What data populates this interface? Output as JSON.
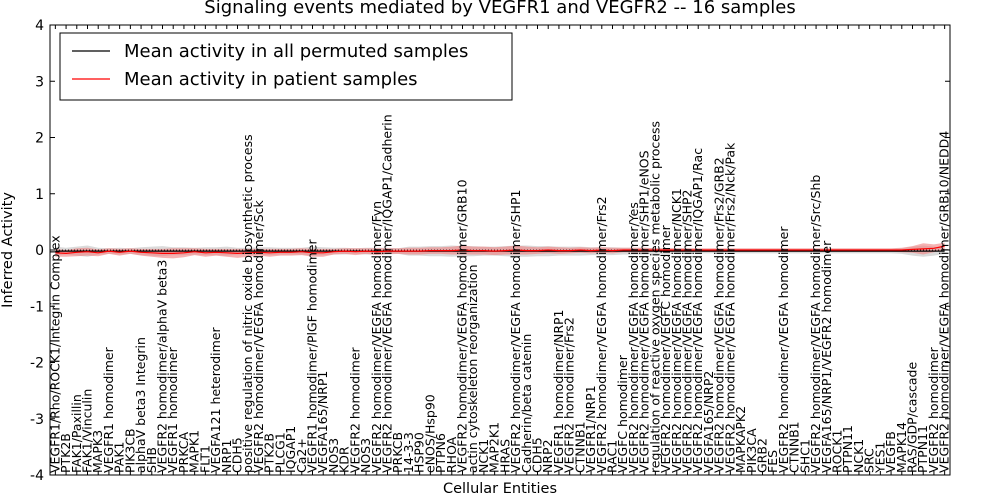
{
  "chart_data": {
    "type": "line",
    "title": "Signaling events mediated by VEGFR1 and VEGFR2 -- 16 samples",
    "xlabel": "Cellular Entities",
    "ylabel": "Inferred Activity",
    "ylim": [
      -4,
      4
    ],
    "yticks": [
      "-4",
      "-3",
      "-2",
      "-1",
      "0",
      "1",
      "2",
      "3",
      "4"
    ],
    "legend": {
      "placement": "top-left",
      "entries": [
        {
          "name": "Mean activity in all permuted samples",
          "color": "#000000"
        },
        {
          "name": "Mean activity in patient samples",
          "color": "#ff0000"
        }
      ]
    },
    "categories": [
      "VEGFR1/Rho/ROCK1/Integrin Complex",
      "PTK2B",
      "FAK1/Paxillin",
      "FAK1/Vinculin",
      "MAPK3",
      "VEGFR1 homodimer",
      "PAK1",
      "PIK3CB",
      "alphaV beta3 Integrin",
      "SHB",
      "VEGFR2 homodimer/alphaV beta3",
      "VEGFR1 homodimer",
      "PRKCA",
      "MAPK1",
      "FLT1",
      "VEGFA121 heterodimer",
      "NRP1",
      "CDH5",
      "positive regulation of nitric oxide biosynthetic process",
      "VEGFR2 homodimer/VEGFA homodimer/Sck",
      "PTK2B",
      "PLCG1",
      "IQGAP1",
      "Ca2+",
      "VEGFR1 homodimer/PlGF homodimer",
      "VEGFA165/NRP1",
      "NOS3",
      "KDR",
      "VEGFR2 homodimer",
      "NOS3",
      "VEGFR2 homodimer/VEGFA homodimer/Fyn",
      "VEGFR2 homodimer/VEGFA homodimer/IQGAP1/Cadherin",
      "PRKCB",
      "14-3-3",
      "HSP90",
      "eNOS/Hsp90",
      "PTPN6",
      "RHOA",
      "VEGFR2 homodimer/VEGFA homodimer/GRB10",
      "actin cytoskeleton reorganization",
      "NCK1",
      "MAP2K1",
      "HRAS",
      "VEGFR2 homodimer/VEGFA homodimer/SHP1",
      "Cadherin/beta catenin",
      "CDH5",
      "NRP2",
      "VEGFR1 homodimer/NRP1",
      "VEGFR2 homodimer/Frs2",
      "CTNNB1",
      "VEGFR1/NRP1",
      "VEGFR2 homodimer/VEGFA homodimer/Frs2",
      "RAC1",
      "VEGFC homodimer",
      "VEGFR2 homodimer/VEGFA homodimer/Yes",
      "VEGFR2 homodimer/VEGFA homodimer/SHP1/eNOS",
      "regulation of reactive oxygen species metabolic process",
      "VEGFR2 homodimer/VEGFC homodimer",
      "VEGFR2 homodimer/VEGFA homodimer/NCK1",
      "VEGFR2 homodimer/VEGFA homodimer/SHP2",
      "VEGFR2 homodimer/VEGFA homodimer/IQGAP1/Rac",
      "VEGFA165/NRP2",
      "VEGFR2 homodimer/VEGFA homodimer/Frs2/GRB2",
      "VEGFR2 homodimer/VEGFA homodimer/Frs2/Nck/Pak",
      "MAPKAPK2",
      "PIK3CA",
      "GRB2",
      "FES",
      "VEGFR2 homodimer/VEGFA homodimer",
      "CTNNB1",
      "SHC1",
      "VEGFR2 homodimer/VEGFA homodimer/Src/Shb",
      "VEGFA165/NRP1/VEGFR2 homodimer",
      "ROCK1",
      "PTPN11",
      "NCK1",
      "SRC",
      "YES1",
      "VEGFB",
      "MAPK14",
      "RAS/GDP/cascade",
      "PTPN11",
      "VEGFR2 homodimer",
      "VEGFR2 homodimer/VEGFA homodimer/GRB10/NEDD4"
    ],
    "series": [
      {
        "name": "Mean activity in all permuted samples",
        "color": "#000000",
        "values": [
          -0.02,
          -0.02,
          -0.02,
          -0.02,
          -0.02,
          -0.02,
          -0.02,
          -0.02,
          -0.02,
          -0.02,
          -0.02,
          -0.02,
          -0.02,
          -0.02,
          -0.02,
          -0.02,
          -0.02,
          -0.02,
          -0.02,
          -0.02,
          -0.02,
          -0.02,
          -0.02,
          -0.02,
          -0.02,
          -0.02,
          -0.02,
          -0.02,
          -0.02,
          -0.02,
          -0.02,
          -0.02,
          -0.02,
          -0.02,
          -0.02,
          -0.02,
          -0.02,
          -0.02,
          -0.02,
          -0.02,
          -0.02,
          -0.02,
          -0.02,
          -0.02,
          -0.02,
          -0.02,
          -0.02,
          -0.02,
          -0.02,
          -0.02,
          -0.02,
          -0.02,
          -0.02,
          -0.02,
          -0.02,
          -0.02,
          -0.02,
          -0.02,
          -0.02,
          -0.02,
          -0.02,
          -0.02,
          -0.02,
          -0.02,
          -0.02,
          -0.02,
          -0.02,
          -0.02,
          -0.02,
          -0.02,
          -0.02,
          -0.02,
          -0.02,
          -0.02,
          -0.02,
          -0.02,
          -0.02,
          -0.02,
          -0.02,
          -0.02,
          -0.02,
          -0.02,
          -0.02,
          -0.02
        ],
        "band": [
          0.08,
          0.06,
          0.08,
          0.1,
          0.06,
          0.05,
          0.06,
          0.05,
          0.07,
          0.08,
          0.09,
          0.07,
          0.07,
          0.06,
          0.07,
          0.07,
          0.08,
          0.06,
          0.06,
          0.07,
          0.07,
          0.06,
          0.06,
          0.06,
          0.08,
          0.07,
          0.06,
          0.06,
          0.05,
          0.06,
          0.06,
          0.06,
          0.05,
          0.08,
          0.08,
          0.09,
          0.09,
          0.1,
          0.09,
          0.09,
          0.08,
          0.08,
          0.09,
          0.1,
          0.1,
          0.09,
          0.09,
          0.08,
          0.08,
          0.08,
          0.07,
          0.07,
          0.07,
          0.06,
          0.06,
          0.06,
          0.05,
          0.05,
          0.05,
          0.05,
          0.04,
          0.04,
          0.04,
          0.04,
          0.04,
          0.04,
          0.04,
          0.04,
          0.04,
          0.04,
          0.04,
          0.04,
          0.04,
          0.04,
          0.04,
          0.04,
          0.04,
          0.04,
          0.04,
          0.05,
          0.08,
          0.1,
          0.08,
          0.05
        ]
      },
      {
        "name": "Mean activity in patient samples",
        "color": "#ff0000",
        "values": [
          -0.05,
          -0.06,
          -0.04,
          -0.03,
          -0.05,
          -0.02,
          -0.04,
          -0.02,
          -0.04,
          -0.05,
          -0.06,
          -0.06,
          -0.05,
          -0.03,
          -0.05,
          -0.04,
          -0.05,
          -0.06,
          -0.05,
          -0.04,
          -0.05,
          -0.04,
          -0.04,
          -0.03,
          -0.05,
          -0.05,
          -0.03,
          -0.02,
          -0.03,
          -0.02,
          -0.03,
          -0.02,
          -0.02,
          -0.02,
          -0.02,
          -0.01,
          -0.01,
          -0.01,
          0.0,
          -0.01,
          -0.01,
          -0.02,
          -0.01,
          0.0,
          -0.01,
          -0.01,
          0.0,
          -0.01,
          -0.01,
          0.0,
          -0.01,
          0.0,
          -0.01,
          0.0,
          0.0,
          0.0,
          0.0,
          0.0,
          0.0,
          0.0,
          0.0,
          0.0,
          0.0,
          0.0,
          0.0,
          0.0,
          0.0,
          0.0,
          0.0,
          0.0,
          0.0,
          0.0,
          0.0,
          0.0,
          0.0,
          0.0,
          0.0,
          0.0,
          0.0,
          0.0,
          0.01,
          0.02,
          0.03,
          0.07
        ],
        "band": [
          0.07,
          0.06,
          0.07,
          0.07,
          0.06,
          0.05,
          0.06,
          0.05,
          0.06,
          0.07,
          0.08,
          0.09,
          0.08,
          0.06,
          0.07,
          0.06,
          0.07,
          0.08,
          0.07,
          0.06,
          0.07,
          0.06,
          0.06,
          0.06,
          0.07,
          0.07,
          0.05,
          0.05,
          0.06,
          0.05,
          0.06,
          0.05,
          0.05,
          0.06,
          0.06,
          0.06,
          0.06,
          0.07,
          0.08,
          0.07,
          0.07,
          0.07,
          0.07,
          0.08,
          0.07,
          0.06,
          0.06,
          0.06,
          0.05,
          0.05,
          0.05,
          0.05,
          0.05,
          0.04,
          0.04,
          0.04,
          0.03,
          0.03,
          0.03,
          0.03,
          0.03,
          0.03,
          0.03,
          0.03,
          0.03,
          0.03,
          0.03,
          0.03,
          0.03,
          0.03,
          0.03,
          0.03,
          0.03,
          0.03,
          0.03,
          0.03,
          0.03,
          0.03,
          0.03,
          0.04,
          0.06,
          0.1,
          0.07,
          0.06
        ]
      }
    ]
  }
}
